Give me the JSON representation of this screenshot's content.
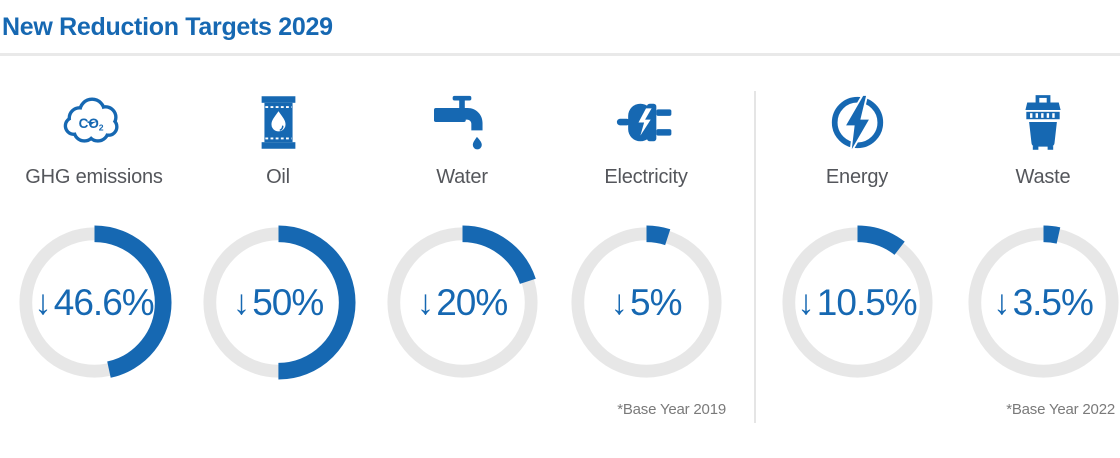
{
  "header": {
    "title": "New Reduction Targets 2029"
  },
  "colors": {
    "accent": "#1668B2",
    "track": "#E7E7E7",
    "label_gray": "#54565B",
    "note_gray": "#7A7A7A",
    "rule_gray": "#E9E9E9"
  },
  "glyphs": {
    "down_arrow": "↓"
  },
  "chart_data": {
    "type": "pie",
    "subtype": "donut-gauge-set",
    "title": "New Reduction Targets 2029",
    "arc_start": "top",
    "arc_direction": "clockwise",
    "value_meaning": "percent reduction target (down arrow = decrease)",
    "groups": [
      {
        "note": "*Base Year 2019",
        "items": [
          {
            "label": "GHG emissions",
            "icon": "co2-cloud-icon",
            "value": 46.6,
            "display": "46.6%"
          },
          {
            "label": "Oil",
            "icon": "oil-barrel-icon",
            "value": 50,
            "display": "50%"
          },
          {
            "label": "Water",
            "icon": "water-faucet-icon",
            "value": 20,
            "display": "20%"
          },
          {
            "label": "Electricity",
            "icon": "electric-plug-icon",
            "value": 5,
            "display": "5%"
          }
        ]
      },
      {
        "note": "*Base Year 2022",
        "items": [
          {
            "label": "Energy",
            "icon": "energy-bolt-icon",
            "value": 10.5,
            "display": "10.5%"
          },
          {
            "label": "Waste",
            "icon": "waste-bin-icon",
            "value": 3.5,
            "display": "3.5%"
          }
        ]
      }
    ]
  }
}
